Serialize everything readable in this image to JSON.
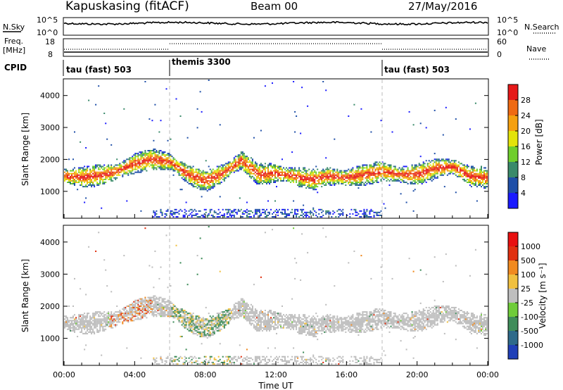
{
  "header": {
    "station": "Kapuskasing (fitACF)",
    "beam": "Beam 00",
    "date": "27/May/2016"
  },
  "strips": {
    "nsky_label": "N.Sky",
    "nsearch_label": "N.Search",
    "nsky_ticks": [
      "10^5",
      "10^0"
    ],
    "nsearch_ticks": [
      "10^5",
      "10^0"
    ],
    "freq_label_1": "Freq.",
    "freq_label_2": "[MHz]",
    "freq_ticks": [
      "18",
      "8"
    ],
    "nave_label": "Nave",
    "nave_ticks": [
      "60",
      "0"
    ],
    "cpid_label": "CPID",
    "cpid_segments": [
      {
        "label": "tau (fast) 503",
        "start_hour": 0,
        "end_hour": 6
      },
      {
        "label": "themis 3300",
        "start_hour": 6,
        "end_hour": 18
      },
      {
        "label": "tau (fast) 503",
        "start_hour": 18,
        "end_hour": 24
      }
    ]
  },
  "chart_data": [
    {
      "type": "heatmap",
      "panel": "power",
      "ylabel": "Slant Range [km]",
      "xlabel": "Time UT",
      "xlim": [
        0,
        24
      ],
      "ylim": [
        180,
        4500
      ],
      "y_ticks": [
        "1000",
        "2000",
        "3000",
        "4000"
      ],
      "x_ticks": [
        "00:00",
        "04:00",
        "08:00",
        "12:00",
        "16:00",
        "20:00",
        "00:00"
      ],
      "colorbar": {
        "label": "Power [dB]",
        "ticks": [
          "4",
          "8",
          "12",
          "16",
          "20",
          "24",
          "28"
        ],
        "colors": [
          "#1a1aff",
          "#1f4fa8",
          "#3a8a6a",
          "#6fce2c",
          "#e3e30a",
          "#f5a00f",
          "#ef6a12",
          "#e61919"
        ]
      },
      "main_echo_band_km": [
        [
          0,
          1450
        ],
        [
          1,
          1420
        ],
        [
          2,
          1480
        ],
        [
          3,
          1600
        ],
        [
          4,
          1850
        ],
        [
          5,
          1980
        ],
        [
          6,
          1900
        ],
        [
          7,
          1500
        ],
        [
          8,
          1300
        ],
        [
          9,
          1550
        ],
        [
          10,
          1950
        ],
        [
          11,
          1500
        ],
        [
          12,
          1550
        ],
        [
          13,
          1450
        ],
        [
          14,
          1350
        ],
        [
          15,
          1450
        ],
        [
          16,
          1400
        ],
        [
          17,
          1500
        ],
        [
          18,
          1600
        ],
        [
          19,
          1500
        ],
        [
          20,
          1500
        ],
        [
          21,
          1700
        ],
        [
          22,
          1750
        ],
        [
          23,
          1450
        ],
        [
          24,
          1400
        ]
      ]
    },
    {
      "type": "heatmap",
      "panel": "velocity",
      "ylabel": "Slant Range [km]",
      "xlabel": "Time UT",
      "xlim": [
        0,
        24
      ],
      "ylim": [
        180,
        4500
      ],
      "y_ticks": [
        "1000",
        "2000",
        "3000",
        "4000"
      ],
      "x_ticks": [
        "00:00",
        "04:00",
        "08:00",
        "12:00",
        "16:00",
        "20:00",
        "00:00"
      ],
      "colorbar": {
        "label": "Velocity [m s⁻¹]",
        "ticks": [
          "1000",
          "500",
          "100",
          "25",
          "-25",
          "-100",
          "-500",
          "-1000"
        ],
        "colors": [
          "#2040b8",
          "#2e6a8a",
          "#3f8d5a",
          "#6fcc3a",
          "#bebebe",
          "#f0c040",
          "#f08a20",
          "#e03010",
          "#e81010"
        ]
      }
    }
  ]
}
